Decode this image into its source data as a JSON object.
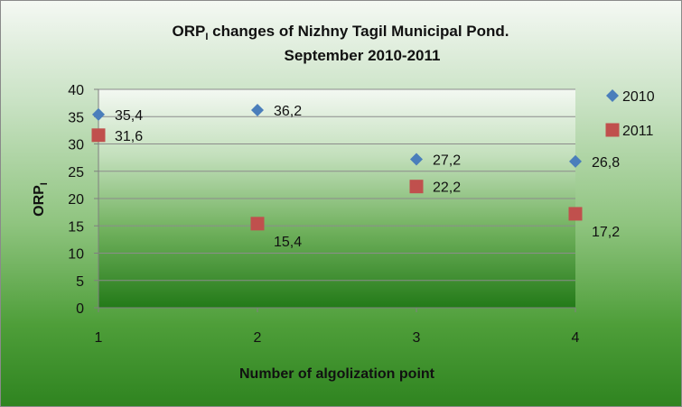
{
  "chart_data": {
    "type": "scatter",
    "title_line1_main": "ORP",
    "title_line1_sub": "I",
    "title_line1_rest": " changes of Nizhny Tagil Municipal Pond.",
    "title_line2": "September 2010-2011",
    "xlabel": "Number of algolization  point",
    "ylabel_main": "ORP",
    "ylabel_sub": "I",
    "xlim": [
      1,
      4
    ],
    "ylim": [
      0,
      40
    ],
    "xticks": [
      1,
      2,
      3,
      4
    ],
    "yticks": [
      0,
      5,
      10,
      15,
      20,
      25,
      30,
      35,
      40
    ],
    "grid": true,
    "legend_position": "right",
    "series": [
      {
        "name": "2010",
        "marker": "diamond",
        "color": "#4a7ebb",
        "x": [
          1,
          2,
          3,
          4
        ],
        "y": [
          35.4,
          36.2,
          27.2,
          26.8
        ],
        "labels": [
          "35,4",
          "36,2",
          "27,2",
          "26,8"
        ]
      },
      {
        "name": "2011",
        "marker": "square",
        "color": "#c0504d",
        "x": [
          1,
          2,
          3,
          4
        ],
        "y": [
          31.6,
          15.4,
          22.2,
          17.2
        ],
        "labels": [
          "31,6",
          "15,4",
          "22,2",
          "17,2"
        ]
      }
    ]
  }
}
